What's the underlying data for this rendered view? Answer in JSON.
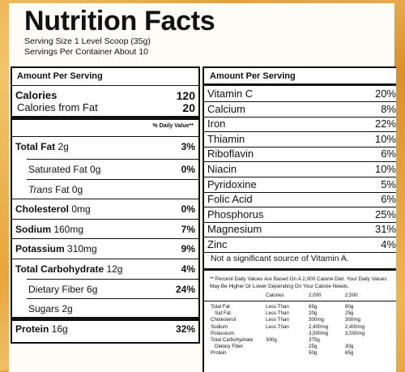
{
  "title": "Nutrition Facts",
  "serving_size": "Serving Size 1 Level Scoop (35g)",
  "servings_per_container": "Servings Per Container About 10",
  "left": {
    "amount_header": "Amount Per Serving",
    "calories_label": "Calories",
    "calories_value": "120",
    "calories_fat_label": "Calories from Fat",
    "calories_fat_value": "20",
    "dv_header": "% Daily Value**",
    "rows": [
      {
        "name": "Total Fat",
        "amount": "2g",
        "dv": "3%"
      },
      {
        "name": "Saturated Fat",
        "amount": "0g",
        "dv": "0%"
      },
      {
        "name": "Trans",
        "suffix": " Fat 0g",
        "dv": ""
      },
      {
        "name": "Cholesterol",
        "amount": "0mg",
        "dv": "0%"
      },
      {
        "name": "Sodium",
        "amount": "160mg",
        "dv": "7%"
      },
      {
        "name": "Potassium",
        "amount": "310mg",
        "dv": "9%"
      },
      {
        "name": "Total Carbohydrate",
        "amount": "12g",
        "dv": "4%"
      },
      {
        "name": "Dietary Fiber",
        "amount": "6g",
        "dv": "24%"
      },
      {
        "name": "Sugars",
        "amount": "2g",
        "dv": ""
      },
      {
        "name": "Protein",
        "amount": "16g",
        "dv": "32%"
      }
    ]
  },
  "right": {
    "amount_header": "Amount Per Serving",
    "vitamins": [
      {
        "name": "Vitamin C",
        "dv": "20%"
      },
      {
        "name": "Calcium",
        "dv": "8%"
      },
      {
        "name": "Iron",
        "dv": "22%"
      },
      {
        "name": "Thiamin",
        "dv": "10%"
      },
      {
        "name": "Riboflavin",
        "dv": "6%"
      },
      {
        "name": "Niacin",
        "dv": "10%"
      },
      {
        "name": "Pyridoxine",
        "dv": "5%"
      },
      {
        "name": "Folic Acid",
        "dv": "6%"
      },
      {
        "name": "Phosphorus",
        "dv": "25%"
      },
      {
        "name": "Magnesium",
        "dv": "31%"
      },
      {
        "name": "Zinc",
        "dv": "4%"
      }
    ],
    "not_significant": "Not a significant source of Vitamin A.",
    "footnote": "** Percent Daily Values Are Based On A 2,000 Calorie Diet. Your Daily Values May Be Higher Or Lower Depending On Your Calorie Needs.",
    "table_header": [
      "",
      "Calories",
      "2,000",
      "2,500"
    ],
    "table_rows": [
      [
        "Total Fat",
        "Less Than",
        "65g",
        "80g"
      ],
      [
        "Sat Fat",
        "Less Than",
        "20g",
        "25g"
      ],
      [
        "Cholesterol",
        "Less Than",
        "300mg",
        "300mg"
      ],
      [
        "Sodium",
        "Less Than",
        "2,400mg",
        "2,400mg"
      ],
      [
        "Potassium",
        "",
        "3,500mg",
        "3,500mg"
      ],
      [
        "Total Carbohydrate",
        "300g",
        "375g",
        ""
      ],
      [
        "Dietary Fiber",
        "",
        "25g",
        "30g"
      ],
      [
        "Protein",
        "",
        "50g",
        "65g"
      ]
    ]
  },
  "colors": {
    "background": "#e9a33c",
    "label": "#ffffff",
    "ink": "#111111"
  }
}
